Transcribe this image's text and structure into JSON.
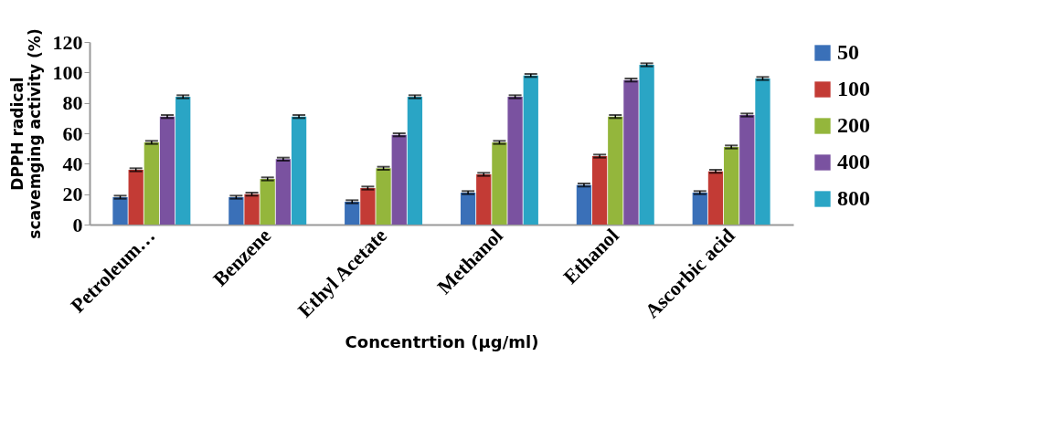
{
  "chart_data": {
    "type": "bar",
    "xlabel": "Concentrtion (µg/ml)",
    "ylabel": "DPPH radical scavemging activity (%)",
    "categories": [
      "Petroleum…",
      "Benzene",
      "Ethyl Acetate",
      "Methanol",
      "Ethanol",
      "Ascorbic acid"
    ],
    "series": [
      {
        "name": "50",
        "color": "#3a70b8",
        "values": [
          18,
          18,
          15,
          21,
          26,
          21
        ],
        "errors": [
          1,
          1,
          1,
          1,
          1,
          1
        ]
      },
      {
        "name": "100",
        "color": "#c33b35",
        "values": [
          36,
          20,
          24,
          33,
          45,
          35
        ],
        "errors": [
          1,
          1,
          1,
          1,
          1,
          1
        ]
      },
      {
        "name": "200",
        "color": "#94b63c",
        "values": [
          54,
          30,
          37,
          54,
          71,
          51
        ],
        "errors": [
          1,
          1,
          1,
          1,
          1,
          1
        ]
      },
      {
        "name": "400",
        "color": "#7a52a0",
        "values": [
          71,
          43,
          59,
          84,
          95,
          72
        ],
        "errors": [
          1,
          1,
          1,
          1,
          1,
          1
        ]
      },
      {
        "name": "800",
        "color": "#2aa5c5",
        "values": [
          84,
          71,
          84,
          98,
          105,
          96
        ],
        "errors": [
          1,
          1,
          1,
          1,
          1,
          1
        ]
      }
    ],
    "ylim": [
      0,
      120
    ],
    "yticks": [
      0,
      20,
      40,
      60,
      80,
      100,
      120
    ],
    "grid": false,
    "legend": "right"
  }
}
